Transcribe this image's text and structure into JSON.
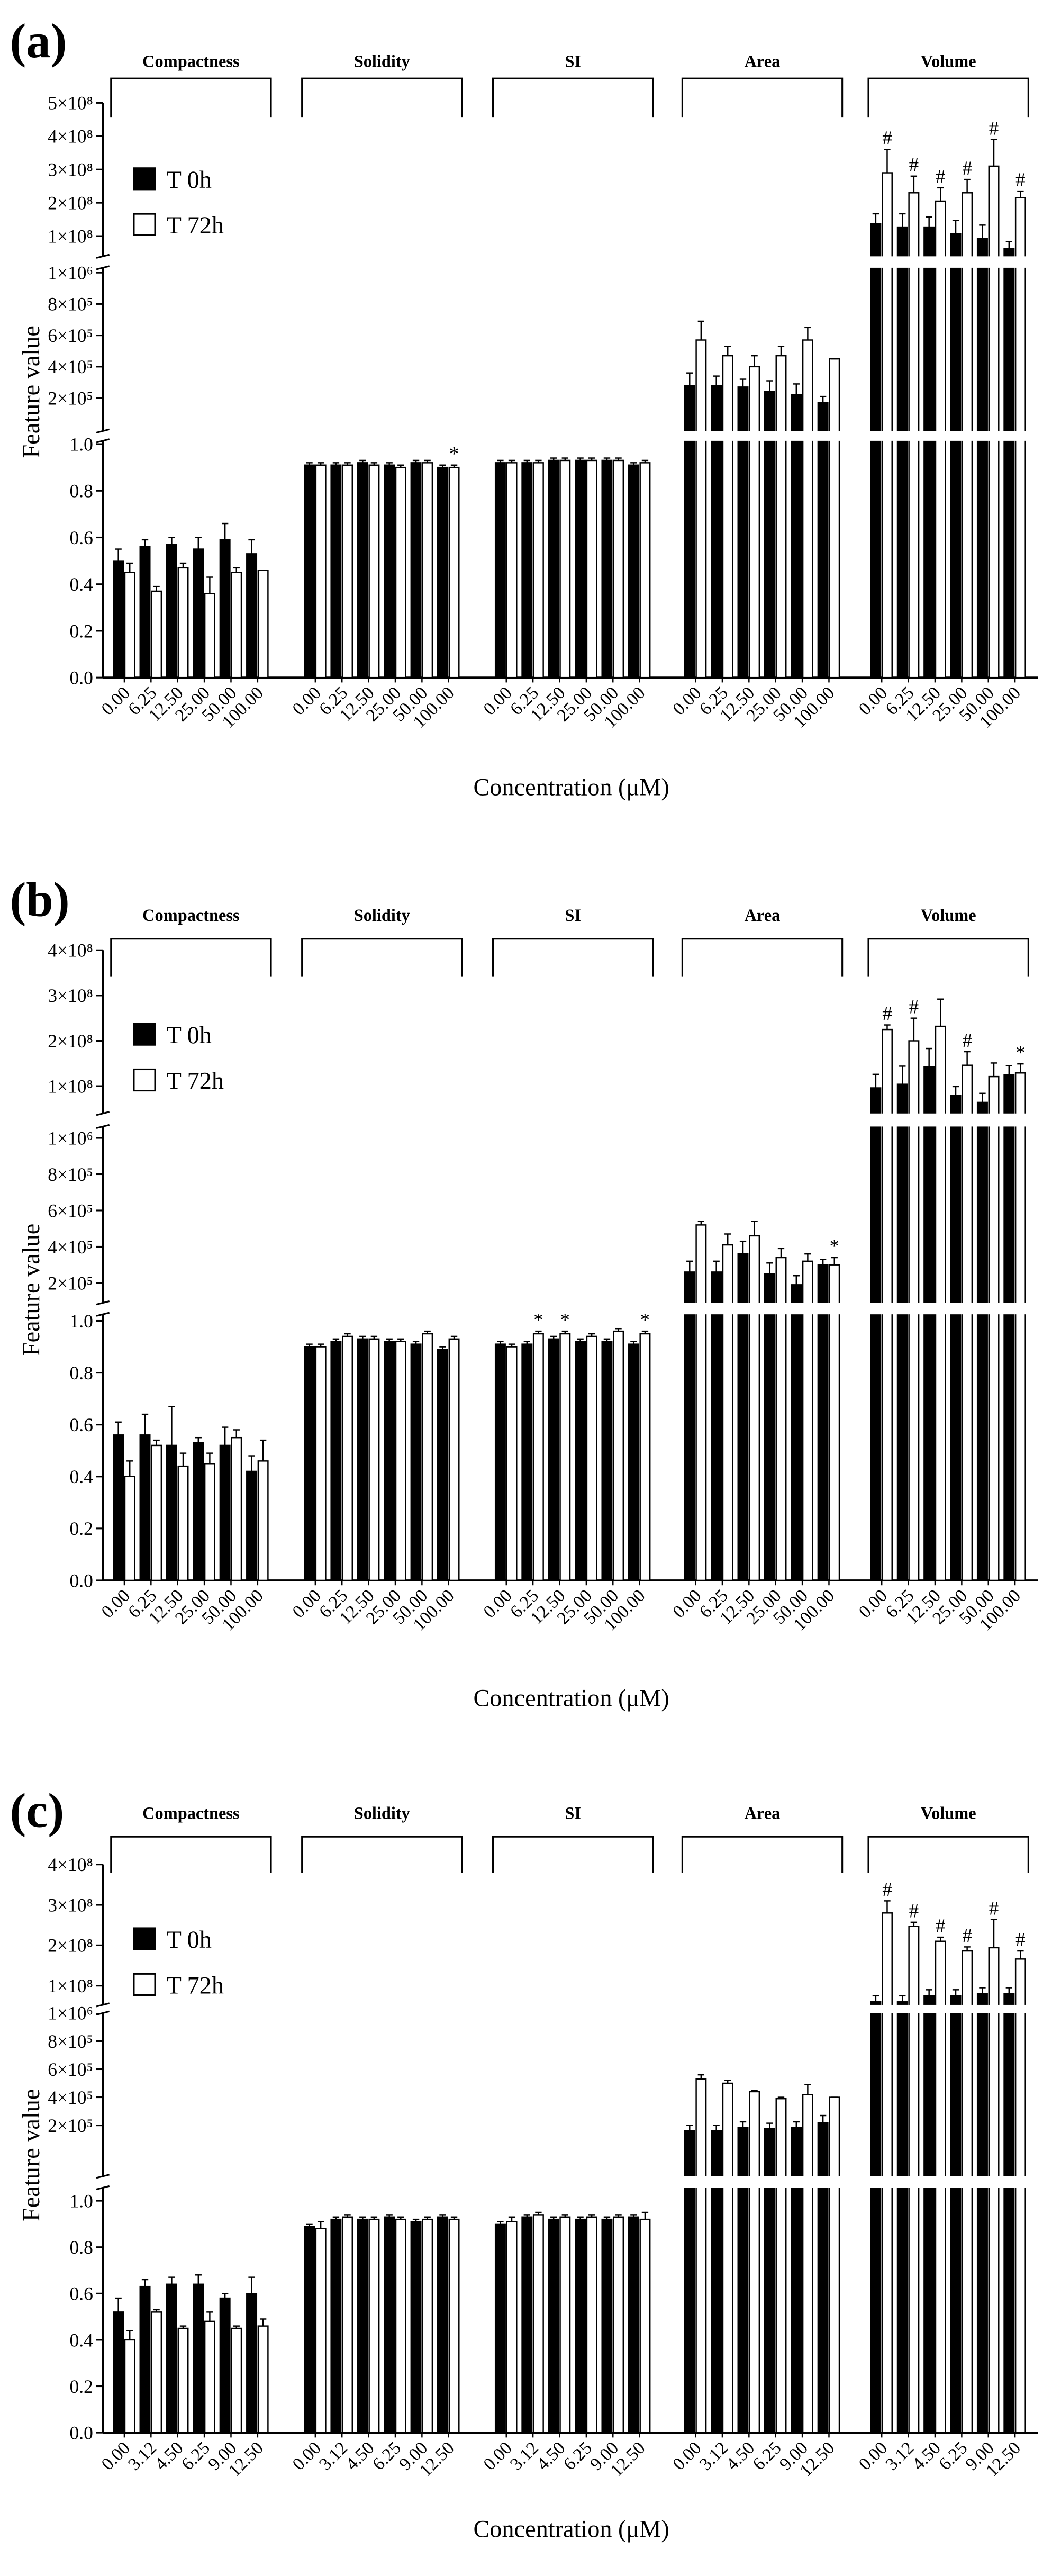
{
  "chart_data": [
    {
      "type": "bar",
      "title": "(a)",
      "y_label": "Feature value",
      "x_label": "Concentration (μM)",
      "categories": [
        "0.00",
        "6.25",
        "12.50",
        "25.00",
        "50.00",
        "100.00"
      ],
      "series": [
        {
          "name": "T 0h",
          "color": "#000000"
        },
        {
          "name": "T 72h",
          "color": "#ffffff"
        }
      ],
      "axes": [
        {
          "ylim": [
            0,
            1
          ],
          "yticks": [
            {
              "value": 0,
              "label": "0.0"
            },
            0.2,
            0.4,
            0.6,
            0.8,
            {
              "value": 1,
              "label": "1.0"
            }
          ]
        },
        {
          "ylim": [
            0,
            1000000
          ],
          "yticks": [
            {
              "value": 200000,
              "label": "2×10⁵"
            },
            {
              "value": 400000,
              "label": "4×10⁵"
            },
            {
              "value": 600000,
              "label": "6×10⁵"
            },
            {
              "value": 800000,
              "label": "8×10⁵"
            },
            {
              "value": 1000000,
              "label": "1×10⁶"
            }
          ]
        },
        {
          "ylim": [
            0,
            500000000
          ],
          "yticks": [
            {
              "value": 100000000,
              "label": "1×10⁸"
            },
            {
              "value": 200000000,
              "label": "2×10⁸"
            },
            {
              "value": 300000000,
              "label": "3×10⁸"
            },
            {
              "value": 400000000,
              "label": "4×10⁸"
            },
            {
              "value": 500000000,
              "label": "5×10⁸"
            }
          ]
        }
      ],
      "groups": [
        {
          "name": "Compactness",
          "axis": 0,
          "values": [
            [
              0.5,
              0.56,
              0.57,
              0.55,
              0.59,
              0.53
            ],
            [
              0.45,
              0.37,
              0.47,
              0.36,
              0.45,
              0.46
            ]
          ],
          "errors": [
            [
              0.05,
              0.03,
              0.03,
              0.05,
              0.07,
              0.06
            ],
            [
              0.04,
              0.02,
              0.02,
              0.07,
              0.02,
              0
            ]
          ],
          "annotations": []
        },
        {
          "name": "Solidity",
          "axis": 0,
          "values": [
            [
              0.91,
              0.91,
              0.92,
              0.91,
              0.92,
              0.9
            ],
            [
              0.91,
              0.91,
              0.91,
              0.9,
              0.92,
              0.9
            ]
          ],
          "errors": [
            [
              0.01,
              0.01,
              0.01,
              0.01,
              0.01,
              0.01
            ],
            [
              0.01,
              0.01,
              0.01,
              0.01,
              0.01,
              0.01
            ]
          ],
          "annotations": [
            {
              "series": 1,
              "index": 5,
              "text": "*"
            }
          ]
        },
        {
          "name": "SI",
          "axis": 0,
          "values": [
            [
              0.92,
              0.92,
              0.93,
              0.93,
              0.93,
              0.91
            ],
            [
              0.92,
              0.92,
              0.93,
              0.93,
              0.93,
              0.92
            ]
          ],
          "errors": [
            [
              0.01,
              0.01,
              0.01,
              0.01,
              0.01,
              0.01
            ],
            [
              0.01,
              0.01,
              0.01,
              0.01,
              0.01,
              0.01
            ]
          ],
          "annotations": []
        },
        {
          "name": "Area",
          "axis": 1,
          "values": [
            [
              280000,
              280000,
              270000,
              240000,
              220000,
              170000
            ],
            [
              570000,
              470000,
              400000,
              470000,
              570000,
              450000
            ]
          ],
          "errors": [
            [
              80000,
              60000,
              50000,
              70000,
              70000,
              40000
            ],
            [
              120000,
              60000,
              70000,
              60000,
              80000,
              0
            ]
          ],
          "annotations": []
        },
        {
          "name": "Volume",
          "axis": 2,
          "values": [
            [
              137000000,
              127000000,
              127000000,
              107000000,
              93000000,
              63000000
            ],
            [
              290000000,
              230000000,
              205000000,
              230000000,
              310000000,
              215000000
            ]
          ],
          "errors": [
            [
              30000000,
              40000000,
              30000000,
              40000000,
              40000000,
              20000000
            ],
            [
              70000000,
              50000000,
              40000000,
              40000000,
              80000000,
              20000000
            ]
          ],
          "annotations": [
            {
              "series": 1,
              "index": 0,
              "text": "#"
            },
            {
              "series": 1,
              "index": 1,
              "text": "#"
            },
            {
              "series": 1,
              "index": 2,
              "text": "#"
            },
            {
              "series": 1,
              "index": 3,
              "text": "#"
            },
            {
              "series": 1,
              "index": 4,
              "text": "#"
            },
            {
              "series": 1,
              "index": 5,
              "text": "#"
            }
          ]
        }
      ]
    },
    {
      "type": "bar",
      "title": "(b)",
      "y_label": "Feature value",
      "x_label": "Concentration (μM)",
      "categories": [
        "0.00",
        "6.25",
        "12.50",
        "25.00",
        "50.00",
        "100.00"
      ],
      "series": [
        {
          "name": "T 0h",
          "color": "#000000"
        },
        {
          "name": "T 72h",
          "color": "#ffffff"
        }
      ],
      "axes": [
        {
          "ylim": [
            0,
            1
          ],
          "yticks": [
            {
              "value": 0,
              "label": "0.0"
            },
            0.2,
            0.4,
            0.6,
            0.8,
            {
              "value": 1,
              "label": "1.0"
            }
          ]
        },
        {
          "ylim": [
            0,
            1000000
          ],
          "yticks": [
            {
              "value": 200000,
              "label": "2×10⁵"
            },
            {
              "value": 400000,
              "label": "4×10⁵"
            },
            {
              "value": 600000,
              "label": "6×10⁵"
            },
            {
              "value": 800000,
              "label": "8×10⁵"
            },
            {
              "value": 1000000,
              "label": "1×10⁶"
            }
          ]
        },
        {
          "ylim": [
            0,
            400000000
          ],
          "yticks": [
            {
              "value": 100000000,
              "label": "1×10⁸"
            },
            {
              "value": 200000000,
              "label": "2×10⁸"
            },
            {
              "value": 300000000,
              "label": "3×10⁸"
            },
            {
              "value": 400000000,
              "label": "4×10⁸"
            }
          ]
        }
      ],
      "groups": [
        {
          "name": "Compactness",
          "axis": 0,
          "values": [
            [
              0.56,
              0.56,
              0.52,
              0.53,
              0.52,
              0.42
            ],
            [
              0.4,
              0.52,
              0.44,
              0.45,
              0.55,
              0.46
            ]
          ],
          "errors": [
            [
              0.05,
              0.08,
              0.15,
              0.02,
              0.07,
              0.06
            ],
            [
              0.06,
              0.02,
              0.05,
              0.04,
              0.03,
              0.08
            ]
          ],
          "annotations": []
        },
        {
          "name": "Solidity",
          "axis": 0,
          "values": [
            [
              0.9,
              0.92,
              0.93,
              0.92,
              0.91,
              0.89
            ],
            [
              0.9,
              0.94,
              0.93,
              0.92,
              0.95,
              0.93
            ]
          ],
          "errors": [
            [
              0.01,
              0.01,
              0.01,
              0.01,
              0.01,
              0.01
            ],
            [
              0.01,
              0.01,
              0.01,
              0.01,
              0.01,
              0.01
            ]
          ],
          "annotations": []
        },
        {
          "name": "SI",
          "axis": 0,
          "values": [
            [
              0.91,
              0.91,
              0.93,
              0.92,
              0.92,
              0.91
            ],
            [
              0.9,
              0.95,
              0.95,
              0.94,
              0.96,
              0.95
            ]
          ],
          "errors": [
            [
              0.01,
              0.01,
              0.01,
              0.01,
              0.01,
              0.01
            ],
            [
              0.01,
              0.01,
              0.01,
              0.01,
              0.01,
              0.01
            ]
          ],
          "annotations": [
            {
              "series": 1,
              "index": 1,
              "text": "*"
            },
            {
              "series": 1,
              "index": 2,
              "text": "*"
            },
            {
              "series": 1,
              "index": 5,
              "text": "*"
            }
          ]
        },
        {
          "name": "Area",
          "axis": 1,
          "values": [
            [
              260000,
              260000,
              360000,
              250000,
              190000,
              300000
            ],
            [
              520000,
              410000,
              460000,
              340000,
              320000,
              300000
            ]
          ],
          "errors": [
            [
              60000,
              60000,
              70000,
              60000,
              50000,
              30000
            ],
            [
              20000,
              60000,
              80000,
              50000,
              40000,
              40000
            ]
          ],
          "annotations": [
            {
              "series": 1,
              "index": 5,
              "text": "*"
            }
          ]
        },
        {
          "name": "Volume",
          "axis": 2,
          "values": [
            [
              96000000,
              104000000,
              143000000,
              79000000,
              64000000,
              125000000
            ],
            [
              225000000,
              200000000,
              232000000,
              146000000,
              121000000,
              129000000
            ]
          ],
          "errors": [
            [
              30000000,
              40000000,
              40000000,
              20000000,
              20000000,
              20000000
            ],
            [
              10000000,
              50000000,
              60000000,
              30000000,
              30000000,
              20000000
            ]
          ],
          "annotations": [
            {
              "series": 1,
              "index": 0,
              "text": "#"
            },
            {
              "series": 1,
              "index": 1,
              "text": "#"
            },
            {
              "series": 1,
              "index": 3,
              "text": "#"
            },
            {
              "series": 1,
              "index": 5,
              "text": "*"
            }
          ]
        }
      ]
    },
    {
      "type": "bar",
      "title": "(c)",
      "y_label": "Feature value",
      "x_label": "Concentration (μM)",
      "categories": [
        "0.00",
        "3.12",
        "4.50",
        "6.25",
        "9.00",
        "12.50"
      ],
      "series": [
        {
          "name": "T 0h",
          "color": "#000000"
        },
        {
          "name": "T 72h",
          "color": "#ffffff"
        }
      ],
      "axes": [
        {
          "ylim": [
            0,
            1
          ],
          "yticks": [
            {
              "value": 0,
              "label": "0.0"
            },
            0.2,
            0.4,
            0.6,
            0.8,
            {
              "value": 1,
              "label": "1.0"
            }
          ]
        },
        {
          "ylim": [
            0,
            1000000
          ],
          "yticks": [
            {
              "value": 200000,
              "label": "2×10⁵"
            },
            {
              "value": 400000,
              "label": "4×10⁵"
            },
            {
              "value": 600000,
              "label": "6×10⁵"
            },
            {
              "value": 800000,
              "label": "8×10⁵"
            },
            {
              "value": 1000000,
              "label": "1×10⁶"
            }
          ]
        },
        {
          "ylim": [
            0,
            400000000
          ],
          "yticks": [
            {
              "value": 100000000,
              "label": "1×10⁸"
            },
            {
              "value": 200000000,
              "label": "2×10⁸"
            },
            {
              "value": 300000000,
              "label": "3×10⁸"
            },
            {
              "value": 400000000,
              "label": "4×10⁸"
            }
          ]
        }
      ],
      "groups": [
        {
          "name": "Compactness",
          "axis": 0,
          "values": [
            [
              0.52,
              0.63,
              0.64,
              0.64,
              0.58,
              0.6
            ],
            [
              0.4,
              0.52,
              0.45,
              0.48,
              0.45,
              0.46
            ]
          ],
          "errors": [
            [
              0.06,
              0.03,
              0.03,
              0.04,
              0.02,
              0.07
            ],
            [
              0.04,
              0.01,
              0.01,
              0.04,
              0.01,
              0.03
            ]
          ],
          "annotations": []
        },
        {
          "name": "Solidity",
          "axis": 0,
          "values": [
            [
              0.89,
              0.92,
              0.92,
              0.93,
              0.91,
              0.93
            ],
            [
              0.88,
              0.93,
              0.92,
              0.92,
              0.92,
              0.92
            ]
          ],
          "errors": [
            [
              0.01,
              0.01,
              0.01,
              0.01,
              0.01,
              0.01
            ],
            [
              0.03,
              0.01,
              0.01,
              0.01,
              0.01,
              0.01
            ]
          ],
          "annotations": []
        },
        {
          "name": "SI",
          "axis": 0,
          "values": [
            [
              0.9,
              0.93,
              0.92,
              0.92,
              0.92,
              0.93
            ],
            [
              0.91,
              0.94,
              0.93,
              0.93,
              0.93,
              0.92
            ]
          ],
          "errors": [
            [
              0.01,
              0.01,
              0.01,
              0.01,
              0.01,
              0.01
            ],
            [
              0.02,
              0.01,
              0.01,
              0.01,
              0.01,
              0.03
            ]
          ],
          "annotations": []
        },
        {
          "name": "Area",
          "axis": 1,
          "values": [
            [
              160000,
              160000,
              185000,
              175000,
              185000,
              220000
            ],
            [
              530000,
              500000,
              440000,
              390000,
              420000,
              400000
            ]
          ],
          "errors": [
            [
              40000,
              40000,
              40000,
              40000,
              40000,
              50000
            ],
            [
              30000,
              20000,
              10000,
              10000,
              70000,
              0
            ]
          ],
          "annotations": []
        },
        {
          "name": "Volume",
          "axis": 2,
          "values": [
            [
              60000000,
              60000000,
              75000000,
              75000000,
              80000000,
              80000000
            ],
            [
              280000000,
              247000000,
              210000000,
              186000000,
              194000000,
              166000000
            ]
          ],
          "errors": [
            [
              15000000,
              15000000,
              15000000,
              15000000,
              15000000,
              15000000
            ],
            [
              30000000,
              10000000,
              10000000,
              10000000,
              70000000,
              20000000
            ]
          ],
          "annotations": [
            {
              "series": 1,
              "index": 0,
              "text": "#"
            },
            {
              "series": 1,
              "index": 1,
              "text": "#"
            },
            {
              "series": 1,
              "index": 2,
              "text": "#"
            },
            {
              "series": 1,
              "index": 3,
              "text": "#"
            },
            {
              "series": 1,
              "index": 4,
              "text": "#"
            },
            {
              "series": 1,
              "index": 5,
              "text": "#"
            }
          ]
        }
      ]
    }
  ]
}
